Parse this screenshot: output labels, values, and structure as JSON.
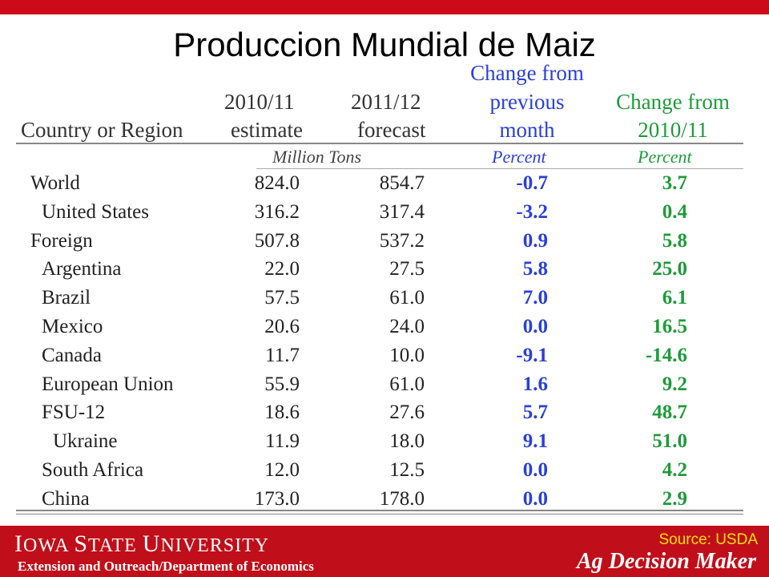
{
  "title": "Produccion Mundial de Maiz",
  "table": {
    "headers": {
      "country": "Country or Region",
      "col1_l1": "2010/11",
      "col1_l2": "estimate",
      "col2_l1": "2011/12",
      "col2_l2": "forecast",
      "col3_l1": "Change from",
      "col3_l2": "previous",
      "col3_l3": "month",
      "col4_l1": "Change from",
      "col4_l2": "2010/11"
    },
    "units": {
      "tons": "Million Tons",
      "pct_month": "Percent",
      "pct_year": "Percent"
    },
    "rows": [
      {
        "name": "World",
        "est": "824.0",
        "fc": "854.7",
        "chg_month": "-0.7",
        "chg_year": "3.7"
      },
      {
        "name": "United States",
        "est": "316.2",
        "fc": "317.4",
        "chg_month": "-3.2",
        "chg_year": "0.4"
      },
      {
        "name": "Foreign",
        "est": "507.8",
        "fc": "537.2",
        "chg_month": "0.9",
        "chg_year": "5.8"
      },
      {
        "name": "Argentina",
        "est": "22.0",
        "fc": "27.5",
        "chg_month": "5.8",
        "chg_year": "25.0"
      },
      {
        "name": "Brazil",
        "est": "57.5",
        "fc": "61.0",
        "chg_month": "7.0",
        "chg_year": "6.1"
      },
      {
        "name": "Mexico",
        "est": "20.6",
        "fc": "24.0",
        "chg_month": "0.0",
        "chg_year": "16.5"
      },
      {
        "name": "Canada",
        "est": "11.7",
        "fc": "10.0",
        "chg_month": "-9.1",
        "chg_year": "-14.6"
      },
      {
        "name": "European Union",
        "est": "55.9",
        "fc": "61.0",
        "chg_month": "1.6",
        "chg_year": "9.2"
      },
      {
        "name": "FSU-12",
        "est": "18.6",
        "fc": "27.6",
        "chg_month": "5.7",
        "chg_year": "48.7"
      },
      {
        "name": "Ukraine",
        "est": "11.9",
        "fc": "18.0",
        "chg_month": "9.1",
        "chg_year": "51.0"
      },
      {
        "name": "South Africa",
        "est": "12.0",
        "fc": "12.5",
        "chg_month": "0.0",
        "chg_year": "4.2"
      },
      {
        "name": "China",
        "est": "173.0",
        "fc": "178.0",
        "chg_month": "0.0",
        "chg_year": "2.9"
      }
    ]
  },
  "footer": {
    "university_a": "I",
    "university_b": "OWA ",
    "university_c": "S",
    "university_d": "TATE ",
    "university_e": "U",
    "university_f": "NIVERSITY",
    "department": "Extension and Outreach/Department  of Economics",
    "source": "Source: USDA",
    "brand": "Ag Decision Maker"
  },
  "colors": {
    "accent_red": "#cc0a18",
    "month_change": "#2a3fd6",
    "year_change": "#1f9a3a",
    "source_text": "#ffe000"
  }
}
